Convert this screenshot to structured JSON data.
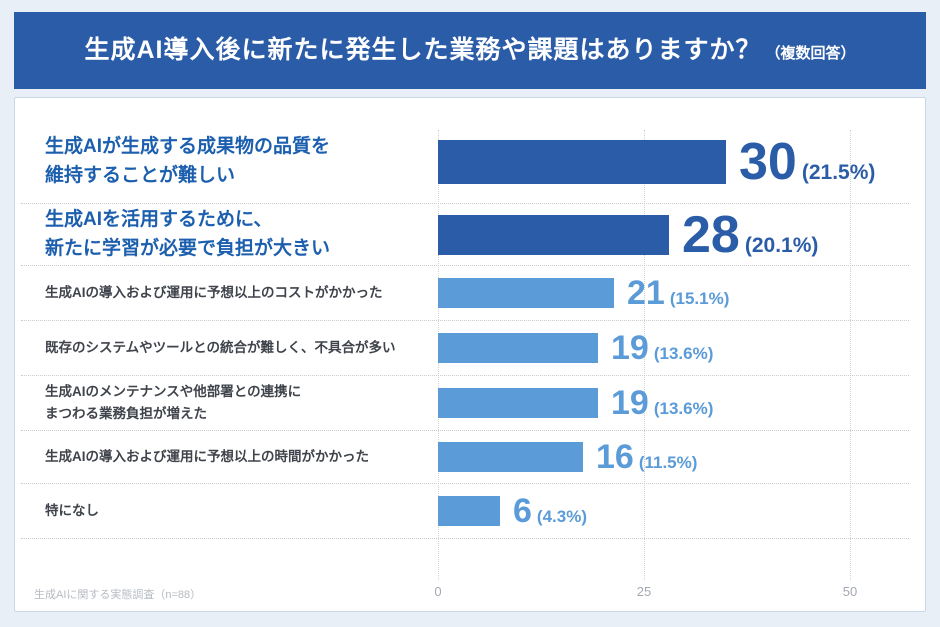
{
  "header": {
    "title": "生成AI導入後に新たに発生した業務や課題はありますか？",
    "suffix": "（複数回答）",
    "bg_color": "#2b5ca7",
    "text_color": "#ffffff"
  },
  "chart_data": {
    "type": "bar",
    "orientation": "horizontal",
    "title": "生成AI導入後に新たに発生した業務や課題はありますか？（複数回答）",
    "categories": [
      "生成AIが生成する成果物の品質を\n維持することが難しい",
      "生成AIを活用するために、\n新たに学習が必要で負担が大きい",
      "生成AIの導入および運用に予想以上のコストがかかった",
      "既存のシステムやツールとの統合が難しく、不具合が多い",
      "生成AIのメンテナンスや他部署との連携に\nまつわる業務負担が増えた",
      "生成AIの導入および運用に予想以上の時間がかかった",
      "特になし"
    ],
    "values": [
      30,
      28,
      21,
      19,
      19,
      16,
      6
    ],
    "percentages": [
      21.5,
      20.1,
      15.1,
      13.6,
      13.6,
      11.5,
      4.3
    ],
    "pct_labels": [
      "(21.5%)",
      "(20.1%)",
      "(15.1%)",
      "(13.6%)",
      "(13.6%)",
      "(11.5%)",
      "(4.3%)"
    ],
    "emphasized": [
      true,
      true,
      false,
      false,
      false,
      false,
      false
    ],
    "x_ticks": [
      "0",
      "25",
      "50"
    ],
    "xlim": [
      0,
      50
    ],
    "grid": "dotted-vertical",
    "n": 88,
    "colors": {
      "bar_emphasis": "#2b5ca7",
      "bar_normal": "#5a9bd8",
      "label_emphasis": "#1c5fae",
      "label_normal": "#3f434b",
      "value_emphasis": "#2b5ca7",
      "value_normal": "#5a9bd8",
      "axis_tick": "#a3a9b2"
    }
  },
  "footer": {
    "source": "生成AIに関する実態調査（n=88）"
  }
}
